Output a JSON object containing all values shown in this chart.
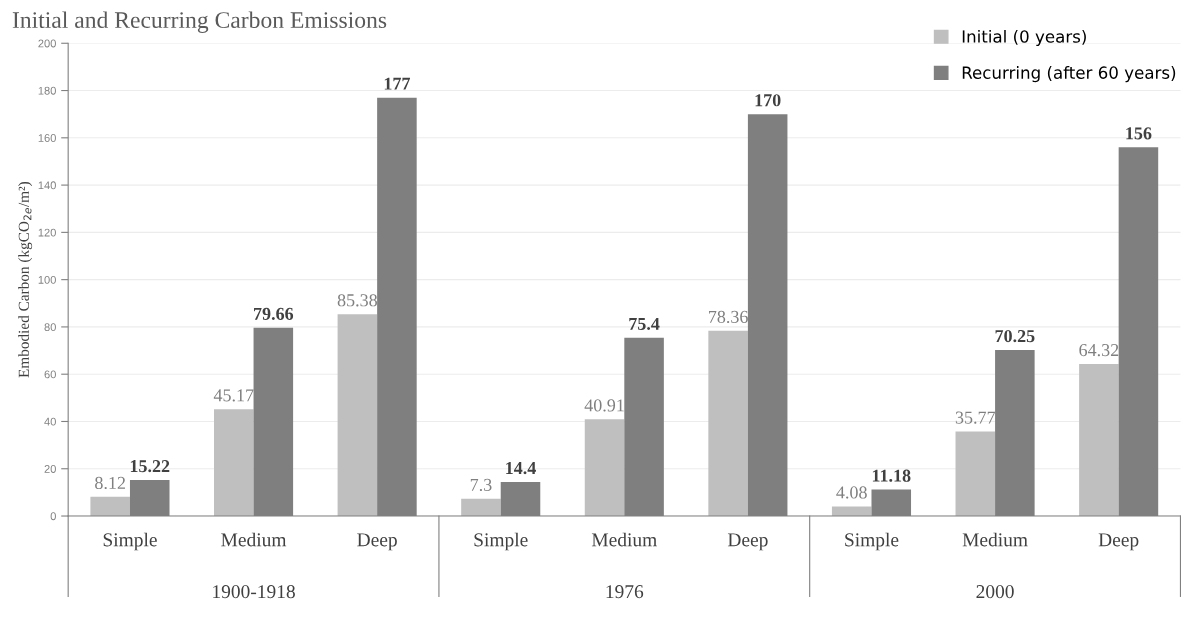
{
  "chart_data": {
    "type": "bar",
    "title": "Initial and Recurring Carbon Emissions",
    "ylabel": "Embodied Carbon (kgCO$_{2e}$/m²)",
    "categories": [
      "Simple",
      "Medium",
      "Deep",
      "Simple",
      "Medium",
      "Deep",
      "Simple",
      "Medium",
      "Deep"
    ],
    "annotations": [
      "1900-1918",
      "1976",
      "2000"
    ],
    "series": [
      {
        "name": "Initial (0 years)",
        "color": "#bfbfbf",
        "values": [
          8.12,
          45.17,
          85.38,
          7.3,
          40.91,
          78.36,
          4.08,
          35.77,
          64.32
        ]
      },
      {
        "name": "Recurring (after 60 years)",
        "color": "#7f7f7f",
        "values": [
          15.22,
          79.66,
          177,
          14.4,
          75.4,
          170,
          11.18,
          70.25,
          156
        ]
      }
    ],
    "data_labels": true,
    "ylim": [
      0,
      200
    ],
    "yticks": [
      0,
      20,
      40,
      60,
      80,
      100,
      120,
      140,
      160,
      180,
      200
    ],
    "grid": "y",
    "legend": "top right"
  }
}
